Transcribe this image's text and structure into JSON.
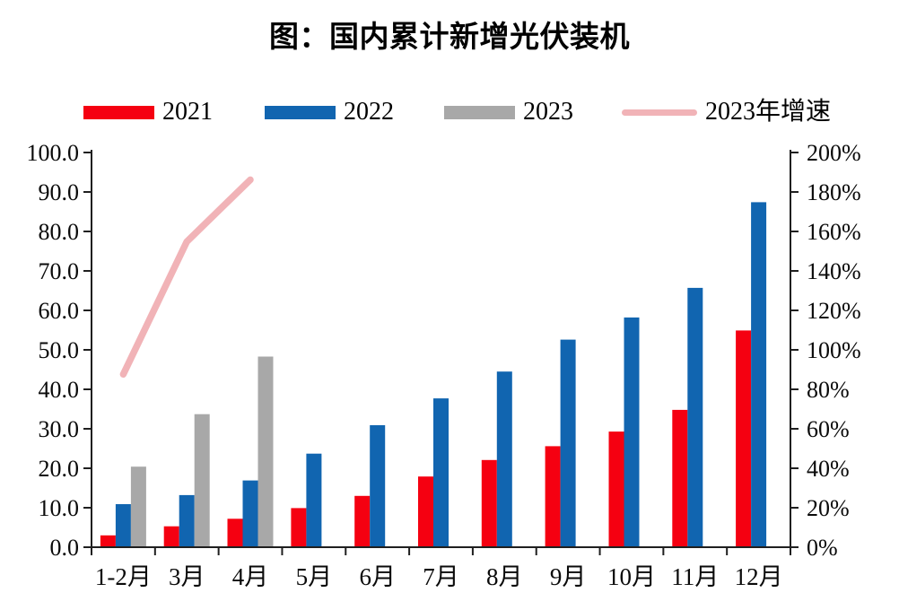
{
  "title": "图：国内累计新增光伏装机",
  "colors": {
    "red": "#F50011",
    "blue": "#1165B0",
    "gray": "#A8A8A8",
    "pink": "#F1B3B7",
    "axis": "#1F1F1F",
    "label": "#0A0A0A"
  },
  "legend": {
    "items": [
      {
        "label": "2021",
        "color_key": "red",
        "swatch": "bar"
      },
      {
        "label": "2022",
        "color_key": "blue",
        "swatch": "bar"
      },
      {
        "label": "2023",
        "color_key": "gray",
        "swatch": "bar"
      },
      {
        "label": "2023年增速",
        "color_key": "pink",
        "swatch": "line"
      }
    ]
  },
  "chart_data": {
    "type": "bar",
    "title": "图：国内累计新增光伏装机",
    "categories": [
      "1-2月",
      "3月",
      "4月",
      "5月",
      "6月",
      "7月",
      "8月",
      "9月",
      "10月",
      "11月",
      "12月"
    ],
    "series": [
      {
        "name": "2021",
        "type": "bar",
        "axis": "left",
        "color_key": "red",
        "values": [
          3.0,
          5.3,
          7.2,
          9.9,
          13.0,
          17.9,
          22.1,
          25.6,
          29.3,
          34.8,
          54.9
        ]
      },
      {
        "name": "2022",
        "type": "bar",
        "axis": "left",
        "color_key": "blue",
        "values": [
          10.9,
          13.2,
          16.9,
          23.7,
          30.9,
          37.7,
          44.5,
          52.6,
          58.2,
          65.7,
          87.4
        ]
      },
      {
        "name": "2023",
        "type": "bar",
        "axis": "left",
        "color_key": "gray",
        "values": [
          20.4,
          33.7,
          48.3,
          null,
          null,
          null,
          null,
          null,
          null,
          null,
          null
        ]
      },
      {
        "name": "2023年增速",
        "type": "line",
        "axis": "right",
        "color_key": "pink",
        "values": [
          87.6,
          154.8,
          186.2,
          null,
          null,
          null,
          null,
          null,
          null,
          null,
          null
        ]
      }
    ],
    "left_axis": {
      "min": 0,
      "max": 100,
      "step": 10,
      "tick_labels": [
        "100.0",
        "90.0",
        "80.0",
        "70.0",
        "60.0",
        "50.0",
        "40.0",
        "30.0",
        "20.0",
        "10.0",
        "0.0"
      ]
    },
    "right_axis": {
      "min": 0,
      "max": 200,
      "step": 20,
      "tick_labels": [
        "200%",
        "180%",
        "160%",
        "140%",
        "120%",
        "100%",
        "80%",
        "60%",
        "40%",
        "20%",
        "0%"
      ]
    },
    "grid": false,
    "legend_position": "top"
  }
}
